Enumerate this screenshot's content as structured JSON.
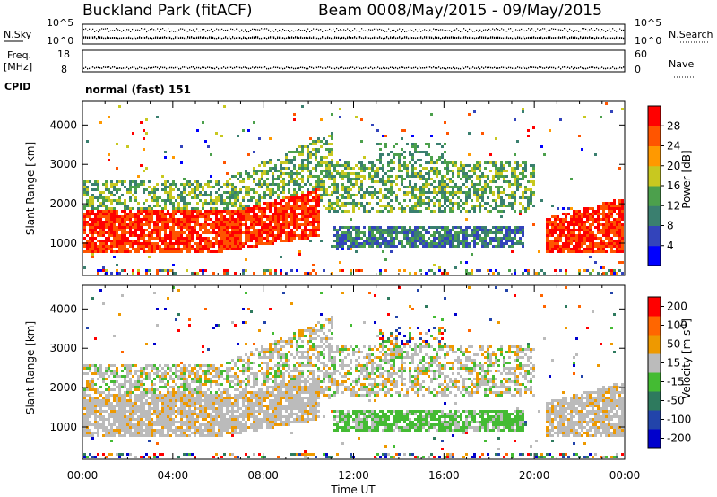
{
  "header": {
    "title": "Buckland Park (fitACF)",
    "beam": "Beam 00",
    "dates": "08/May/2015 - 09/May/2015"
  },
  "noise_panel": {
    "left_label": "N.Sky",
    "left_top": "10^5",
    "left_bottom": "10^0",
    "right_top": "10^5",
    "right_bottom": "10^0",
    "right_label": "N.Search"
  },
  "freq_panel": {
    "left_label_1": "Freq.",
    "left_label_2": "[MHz]",
    "left_top": "18",
    "left_bottom": "8",
    "right_top": "60",
    "right_bottom": "0",
    "right_label": "Nave"
  },
  "cpid": {
    "label": "CPID",
    "value": "normal (fast) 151"
  },
  "chart_data": [
    {
      "type": "heatmap",
      "quantity": "Power",
      "ylabel": "Slant Range [km]",
      "xlabel": "Time UT",
      "y_ticks": [
        "1000",
        "2000",
        "3000",
        "4000"
      ],
      "ylim": [
        180,
        4600
      ],
      "x_ticks": [
        "00:00",
        "04:00",
        "08:00",
        "12:00",
        "16:00",
        "20:00",
        "00:00"
      ],
      "colorbar_label": "Power [dB]",
      "colorbar_ticks": [
        "4",
        "8",
        "12",
        "16",
        "20",
        "24",
        "28"
      ],
      "colors": [
        "#0000ff",
        "#3344bb",
        "#3a7f6f",
        "#4ca04c",
        "#c8c820",
        "#ff9900",
        "#ff5500",
        "#ff0000"
      ]
    },
    {
      "type": "heatmap",
      "quantity": "Velocity",
      "ylabel": "Slant Range [km]",
      "xlabel": "Time UT",
      "y_ticks": [
        "1000",
        "2000",
        "3000",
        "4000"
      ],
      "ylim": [
        180,
        4600
      ],
      "x_ticks": [
        "00:00",
        "04:00",
        "08:00",
        "12:00",
        "16:00",
        "20:00",
        "00:00"
      ],
      "colorbar_label": "Velocity [m s^-1]",
      "colorbar_ticks": [
        "200",
        "100",
        "50",
        "15",
        "-15",
        "-50",
        "-100",
        "-200"
      ],
      "colors": [
        "#0000cc",
        "#2244aa",
        "#2e7a5e",
        "#44bb33",
        "#bbbbbb",
        "#ee9900",
        "#ff6600",
        "#ff0000"
      ]
    }
  ]
}
